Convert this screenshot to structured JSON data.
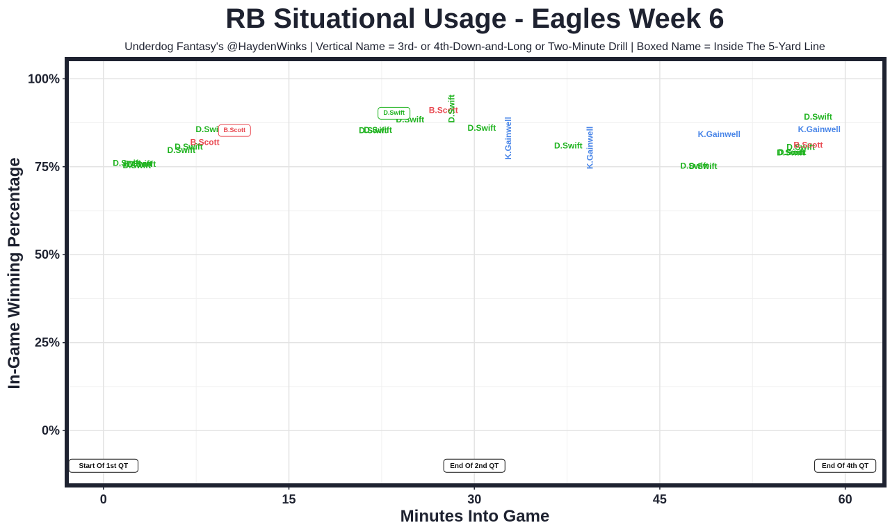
{
  "chart_data": {
    "type": "scatter",
    "title": "RB Situational Usage - Eagles Week 6",
    "subtitle": "Underdog Fantasy's @HaydenWinks | Vertical Name = 3rd- or 4th-Down-and-Long or Two-Minute Drill | Boxed Name = Inside The 5-Yard Line",
    "xlabel": "Minutes Into Game",
    "ylabel": "In-Game Winning Percentage",
    "xlim": [
      -2.8,
      63
    ],
    "ylim": [
      -15,
      105
    ],
    "x_ticks": [
      0,
      15,
      30,
      45,
      60
    ],
    "x_tick_labels": [
      "0",
      "15",
      "30",
      "45",
      "60"
    ],
    "y_ticks": [
      0,
      25,
      50,
      75,
      100
    ],
    "y_tick_labels": [
      "0%",
      "25%",
      "50%",
      "75%",
      "100%"
    ],
    "grid": true,
    "colors": {
      "D.Swift": "#1fb31f",
      "B.Scott": "#e8474f",
      "K.Gainwell": "#4a86e8"
    },
    "points": [
      {
        "player": "D.Swift",
        "x": 1.9,
        "y": 75.9,
        "style": "normal"
      },
      {
        "player": "D.Swift",
        "x": 2.8,
        "y": 75.7,
        "style": "normal"
      },
      {
        "player": "D.Swift",
        "x": 2.7,
        "y": 75.2,
        "style": "normal"
      },
      {
        "player": "D.Swift",
        "x": 3.1,
        "y": 75.6,
        "style": "normal"
      },
      {
        "player": "D.Swift",
        "x": 6.3,
        "y": 79.5,
        "style": "normal"
      },
      {
        "player": "D.Swift",
        "x": 6.9,
        "y": 80.5,
        "style": "normal"
      },
      {
        "player": "B.Scott",
        "x": 8.2,
        "y": 81.8,
        "style": "normal"
      },
      {
        "player": "D.Swift",
        "x": 8.6,
        "y": 85.5,
        "style": "normal"
      },
      {
        "player": "B.Scott",
        "x": 10.6,
        "y": 85.3,
        "style": "boxed"
      },
      {
        "player": "D.Swift",
        "x": 21.8,
        "y": 85.2,
        "style": "normal"
      },
      {
        "player": "D.Swift",
        "x": 22.2,
        "y": 85.3,
        "style": "normal"
      },
      {
        "player": "D.Swift",
        "x": 24.8,
        "y": 88.2,
        "style": "normal"
      },
      {
        "player": "D.Swift",
        "x": 23.5,
        "y": 90.2,
        "style": "boxed"
      },
      {
        "player": "B.Scott",
        "x": 27.5,
        "y": 90.9,
        "style": "normal"
      },
      {
        "player": "D.Swift",
        "x": 28.2,
        "y": 91.5,
        "style": "vertical"
      },
      {
        "player": "D.Swift",
        "x": 30.6,
        "y": 85.9,
        "style": "normal"
      },
      {
        "player": "K.Gainwell",
        "x": 32.8,
        "y": 83.1,
        "style": "vertical"
      },
      {
        "player": "D.Swift",
        "x": 37.6,
        "y": 80.8,
        "style": "normal"
      },
      {
        "player": "K.Gainwell",
        "x": 39.4,
        "y": 80.4,
        "style": "vertical"
      },
      {
        "player": "D.Swift",
        "x": 47.8,
        "y": 75.1,
        "style": "normal"
      },
      {
        "player": "D.Swift",
        "x": 48.5,
        "y": 75.0,
        "style": "normal"
      },
      {
        "player": "K.Gainwell",
        "x": 49.8,
        "y": 84.1,
        "style": "normal"
      },
      {
        "player": "D.Swift",
        "x": 55.6,
        "y": 78.8,
        "style": "normal"
      },
      {
        "player": "D.Swift",
        "x": 55.7,
        "y": 78.9,
        "style": "normal"
      },
      {
        "player": "D.Swift",
        "x": 56.4,
        "y": 80.4,
        "style": "normal"
      },
      {
        "player": "B.Scott",
        "x": 57.0,
        "y": 81.0,
        "style": "normal"
      },
      {
        "player": "K.Gainwell",
        "x": 57.9,
        "y": 85.5,
        "style": "normal"
      },
      {
        "player": "D.Swift",
        "x": 57.8,
        "y": 89.0,
        "style": "normal"
      }
    ],
    "annotations": [
      {
        "text": "Start Of 1st QT",
        "x": 0,
        "y": -10
      },
      {
        "text": "End Of 2nd QT",
        "x": 30,
        "y": -10
      },
      {
        "text": "End Of 4th QT",
        "x": 60,
        "y": -10
      }
    ]
  }
}
